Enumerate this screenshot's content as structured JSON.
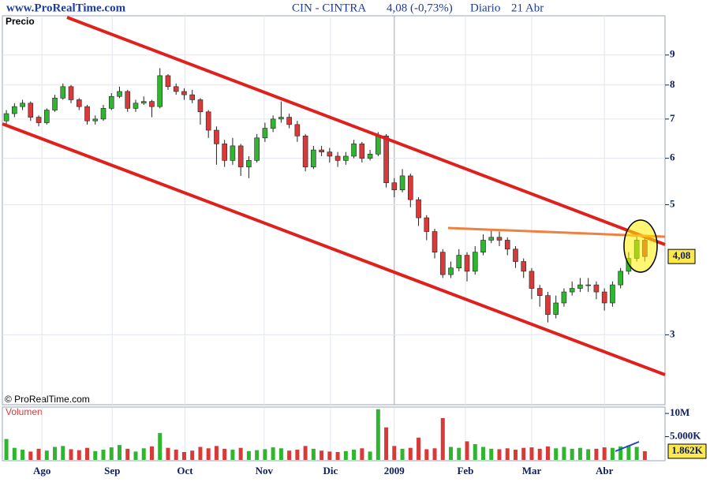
{
  "chart_data": {
    "type": "candlestick",
    "log_y": true,
    "grid": true,
    "site": "www.ProRealTime.com",
    "title": "CIN - CINTRA",
    "quote": "4,08 (-0,73%)",
    "period": "Diario",
    "date": "21 Abr",
    "price_label": "Precio",
    "volume_label": "Volumen",
    "copyright": "© ProRealTime.com",
    "up_color": "#2fb52f",
    "down_color": "#d83a3a",
    "open": [
      6.95,
      7.15,
      7.35,
      7.45,
      7.05,
      6.9,
      7.25,
      7.6,
      7.95,
      7.55,
      7.35,
      6.95,
      7.0,
      7.3,
      7.65,
      7.8,
      7.3,
      7.45,
      7.5,
      7.35,
      8.3,
      7.95,
      7.8,
      7.7,
      7.55,
      7.2,
      6.7,
      6.35,
      5.95,
      6.3,
      5.8,
      5.95,
      6.5,
      6.75,
      7.0,
      7.05,
      6.85,
      6.55,
      5.8,
      6.2,
      6.15,
      6.05,
      5.95,
      6.05,
      6.35,
      6.0,
      6.1,
      6.55,
      5.45,
      5.3,
      5.6,
      5.1,
      4.75,
      4.5,
      4.15,
      3.8,
      3.9,
      4.1,
      3.85,
      4.15,
      4.35,
      4.4,
      4.35,
      4.2,
      4.0,
      3.85,
      3.6,
      3.5,
      3.25,
      3.4,
      3.55,
      3.6,
      3.65,
      3.65,
      3.55,
      3.4,
      3.65,
      3.85,
      4.05,
      4.35
    ],
    "high": [
      7.25,
      7.45,
      7.55,
      7.5,
      7.1,
      7.3,
      7.7,
      8.05,
      8.0,
      7.6,
      7.4,
      7.1,
      7.4,
      7.75,
      7.95,
      7.85,
      7.55,
      7.65,
      7.55,
      8.55,
      8.35,
      8.05,
      7.9,
      7.85,
      7.6,
      7.25,
      6.8,
      6.45,
      6.5,
      6.35,
      6.05,
      6.6,
      6.9,
      7.1,
      7.5,
      7.15,
      6.95,
      6.6,
      6.3,
      6.3,
      6.25,
      6.15,
      6.15,
      6.45,
      6.4,
      6.2,
      6.65,
      6.6,
      5.55,
      5.75,
      5.65,
      5.15,
      4.8,
      4.55,
      4.2,
      4.0,
      4.2,
      4.15,
      4.25,
      4.45,
      4.55,
      4.5,
      4.4,
      4.25,
      4.05,
      3.9,
      3.65,
      3.55,
      3.5,
      3.6,
      3.7,
      3.75,
      3.75,
      3.7,
      3.6,
      3.7,
      3.9,
      4.15,
      4.45,
      4.4
    ],
    "low": [
      6.85,
      7.05,
      7.25,
      6.95,
      6.8,
      6.85,
      7.2,
      7.55,
      7.45,
      7.25,
      6.85,
      6.85,
      6.95,
      7.25,
      7.6,
      7.2,
      7.2,
      7.4,
      7.05,
      7.3,
      7.85,
      7.7,
      7.55,
      7.45,
      6.85,
      6.5,
      5.85,
      5.8,
      5.85,
      5.6,
      5.55,
      5.9,
      6.4,
      6.65,
      6.9,
      6.75,
      6.4,
      5.7,
      5.75,
      6.05,
      5.9,
      5.8,
      5.85,
      6.0,
      5.9,
      5.95,
      6.05,
      5.35,
      5.15,
      5.25,
      4.95,
      4.6,
      4.35,
      4.05,
      3.75,
      3.75,
      3.85,
      3.7,
      3.8,
      4.1,
      4.3,
      4.25,
      4.1,
      3.9,
      3.75,
      3.45,
      3.35,
      3.15,
      3.2,
      3.35,
      3.5,
      3.55,
      3.55,
      3.45,
      3.3,
      3.35,
      3.6,
      3.8,
      4.0,
      4.0
    ],
    "close": [
      7.15,
      7.35,
      7.45,
      7.05,
      6.9,
      7.25,
      7.6,
      7.95,
      7.55,
      7.35,
      6.95,
      7.0,
      7.3,
      7.65,
      7.8,
      7.3,
      7.45,
      7.5,
      7.35,
      8.3,
      7.95,
      7.8,
      7.7,
      7.55,
      7.2,
      6.7,
      6.35,
      5.95,
      6.3,
      5.8,
      5.95,
      6.5,
      6.75,
      7.0,
      7.05,
      6.85,
      6.55,
      5.8,
      6.2,
      6.15,
      6.05,
      5.95,
      6.05,
      6.35,
      6.0,
      6.1,
      6.55,
      5.45,
      5.3,
      5.6,
      5.1,
      4.75,
      4.5,
      4.15,
      3.8,
      3.9,
      4.1,
      3.85,
      4.15,
      4.35,
      4.4,
      4.35,
      4.2,
      4.0,
      3.85,
      3.6,
      3.5,
      3.25,
      3.4,
      3.55,
      3.6,
      3.65,
      3.65,
      3.55,
      3.4,
      3.65,
      3.85,
      4.05,
      4.35,
      4.08
    ],
    "last_price_label": "4,08",
    "volume": [
      4500,
      2600,
      2200,
      1800,
      2400,
      2000,
      2800,
      3000,
      2300,
      2100,
      2600,
      1900,
      2200,
      2700,
      3200,
      2400,
      1800,
      2500,
      2900,
      5800,
      2600,
      2200,
      1700,
      2000,
      2800,
      2500,
      3000,
      2400,
      2200,
      2600,
      1900,
      2100,
      2300,
      2700,
      2500,
      2000,
      2200,
      3000,
      2400,
      2000,
      1800,
      1700,
      1900,
      2200,
      2500,
      1800,
      10900,
      7000,
      3000,
      2400,
      2600,
      4800,
      2300,
      2500,
      9000,
      2800,
      2600,
      4000,
      3400,
      2800,
      2400,
      2300,
      2500,
      2200,
      2600,
      2700,
      2400,
      2900,
      2500,
      2800,
      2400,
      2600,
      2300,
      2400,
      2700,
      2600,
      2900,
      3100,
      2800,
      1862
    ],
    "last_volume_label": "1.862K",
    "xlim": [
      -0.3,
      81.5
    ],
    "xticks": [
      {
        "value": 4.4,
        "label": "Ago"
      },
      {
        "value": 13.1,
        "label": "Sep"
      },
      {
        "value": 22.1,
        "label": "Oct"
      },
      {
        "value": 31.9,
        "label": "Nov"
      },
      {
        "value": 40.1,
        "label": "Dic"
      },
      {
        "value": 48,
        "label": "2009"
      },
      {
        "value": 56.8,
        "label": "Feb"
      },
      {
        "value": 65,
        "label": "Mar"
      },
      {
        "value": 74,
        "label": "Abr"
      }
    ],
    "ylim": [
      2.28,
      10.5
    ],
    "yticks": [
      3,
      5,
      6,
      7,
      8,
      9
    ],
    "y2lim": [
      0,
      11200
    ],
    "y2ticks": [
      {
        "value": 10000,
        "label": "10M"
      },
      {
        "value": 5000,
        "label": "5.000K"
      }
    ]
  }
}
